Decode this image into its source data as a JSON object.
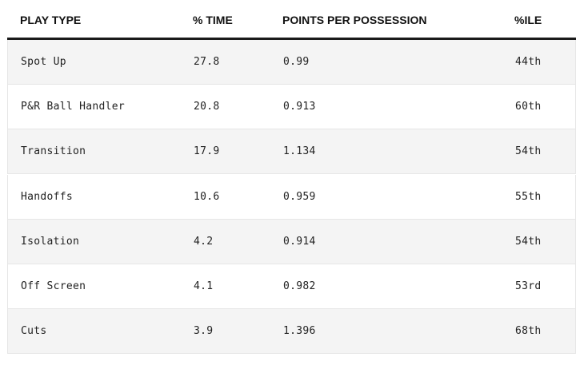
{
  "table": {
    "headers": [
      "PLAY TYPE",
      "% TIME",
      "POINTS PER POSSESSION",
      "%ILE"
    ],
    "rows": [
      [
        "Spot Up",
        "27.8",
        "0.99",
        "44th"
      ],
      [
        "P&R Ball Handler",
        "20.8",
        "0.913",
        "60th"
      ],
      [
        "Transition",
        "17.9",
        "1.134",
        "54th"
      ],
      [
        "Handoffs",
        "10.6",
        "0.959",
        "55th"
      ],
      [
        "Isolation",
        "4.2",
        "0.914",
        "54th"
      ],
      [
        "Off Screen",
        "4.1",
        "0.982",
        "53rd"
      ],
      [
        "Cuts",
        "3.9",
        "1.396",
        "68th"
      ]
    ]
  }
}
